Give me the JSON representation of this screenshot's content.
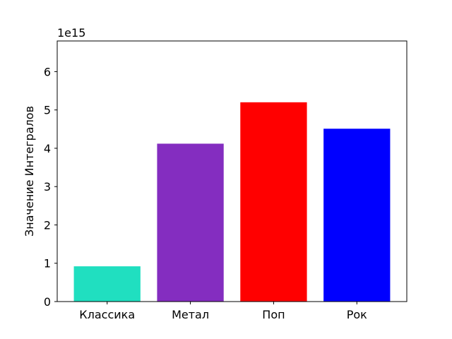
{
  "chart_data": {
    "type": "bar",
    "title": "",
    "xlabel": "",
    "ylabel": "Значение Интегралов",
    "y_offset_label": "1e15",
    "categories": [
      "Классика",
      "Метал",
      "Поп",
      "Рок"
    ],
    "values": [
      0.92,
      4.12,
      5.2,
      4.51
    ],
    "value_scale": 1000000000000000.0,
    "colors": [
      "#20dfc0",
      "#842dc0",
      "#ff0000",
      "#0000ff"
    ],
    "ylim": [
      0,
      6.8
    ],
    "yticks": [
      0,
      1,
      2,
      3,
      4,
      5,
      6
    ],
    "grid": false,
    "legend": "none"
  }
}
